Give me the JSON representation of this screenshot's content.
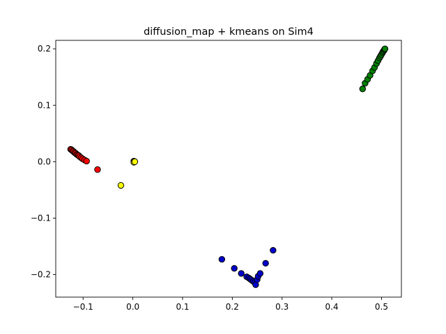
{
  "chart_data": {
    "type": "scatter",
    "title": "diffusion_map + kmeans on Sim4",
    "xlabel": "",
    "ylabel": "",
    "xlim": [
      -0.155,
      0.54
    ],
    "ylim": [
      -0.24,
      0.215
    ],
    "grid": false,
    "legend": "none",
    "x_ticks": [
      {
        "value": -0.1,
        "label": "−0.1"
      },
      {
        "value": 0.0,
        "label": "0.0"
      },
      {
        "value": 0.1,
        "label": "0.1"
      },
      {
        "value": 0.2,
        "label": "0.2"
      },
      {
        "value": 0.3,
        "label": "0.3"
      },
      {
        "value": 0.4,
        "label": "0.4"
      },
      {
        "value": 0.5,
        "label": "0.5"
      }
    ],
    "y_ticks": [
      {
        "value": -0.2,
        "label": "−0.2"
      },
      {
        "value": -0.1,
        "label": "−0.1"
      },
      {
        "value": 0.0,
        "label": "0.0"
      },
      {
        "value": 0.1,
        "label": "0.1"
      },
      {
        "value": 0.2,
        "label": "0.2"
      }
    ],
    "marker_edge_color": "#000000",
    "series": [
      {
        "color": "#ff0000",
        "points": [
          [
            -0.125,
            0.022
          ],
          [
            -0.123,
            0.021
          ],
          [
            -0.121,
            0.019
          ],
          [
            -0.119,
            0.018
          ],
          [
            -0.117,
            0.016
          ],
          [
            -0.115,
            0.015
          ],
          [
            -0.113,
            0.013
          ],
          [
            -0.111,
            0.012
          ],
          [
            -0.109,
            0.011
          ],
          [
            -0.107,
            0.009
          ],
          [
            -0.104,
            0.007
          ],
          [
            -0.101,
            0.005
          ],
          [
            -0.097,
            0.003
          ],
          [
            -0.093,
            0.001
          ],
          [
            -0.071,
            -0.014
          ]
        ]
      },
      {
        "color": "#ffff00",
        "points": [
          [
            0.002,
            0.001
          ],
          [
            0.003,
            0.0
          ],
          [
            0.002,
            -0.001
          ],
          [
            0.004,
            0.0
          ],
          [
            -0.024,
            -0.042
          ]
        ]
      },
      {
        "color": "#0000cd",
        "points": [
          [
            0.179,
            -0.173
          ],
          [
            0.204,
            -0.189
          ],
          [
            0.218,
            -0.198
          ],
          [
            0.229,
            -0.204
          ],
          [
            0.233,
            -0.206
          ],
          [
            0.236,
            -0.208
          ],
          [
            0.239,
            -0.21
          ],
          [
            0.242,
            -0.212
          ],
          [
            0.245,
            -0.214
          ],
          [
            0.247,
            -0.218
          ],
          [
            0.25,
            -0.209
          ],
          [
            0.252,
            -0.203
          ],
          [
            0.256,
            -0.198
          ],
          [
            0.267,
            -0.18
          ],
          [
            0.282,
            -0.157
          ]
        ]
      },
      {
        "color": "#008000",
        "points": [
          [
            0.462,
            0.129
          ],
          [
            0.467,
            0.139
          ],
          [
            0.472,
            0.146
          ],
          [
            0.477,
            0.153
          ],
          [
            0.482,
            0.161
          ],
          [
            0.486,
            0.167
          ],
          [
            0.49,
            0.174
          ],
          [
            0.493,
            0.179
          ],
          [
            0.496,
            0.184
          ],
          [
            0.498,
            0.187
          ],
          [
            0.5,
            0.19
          ],
          [
            0.502,
            0.193
          ],
          [
            0.503,
            0.195
          ],
          [
            0.505,
            0.197
          ],
          [
            0.506,
            0.199
          ],
          [
            0.507,
            0.2
          ]
        ]
      }
    ]
  }
}
